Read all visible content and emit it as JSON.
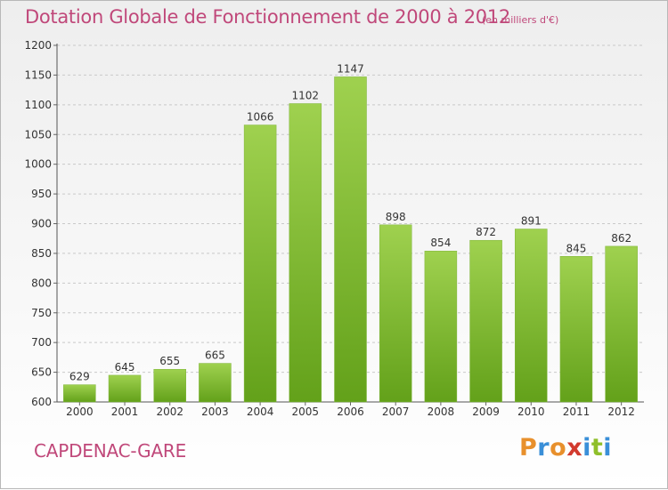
{
  "header": {
    "title": "Dotation Globale de Fonctionnement de 2000 à 2012",
    "unit": "(en milliers d'€)"
  },
  "footer": {
    "town": "CAPDENAC-GARE",
    "logo": "Proxiti"
  },
  "colors": {
    "accent": "#c0487a",
    "bar_light": "#9fd14f",
    "bar_dark": "#63a11a",
    "logo_letters": [
      "#e8902c",
      "#3a8fd8",
      "#e8902c",
      "#d23a2e",
      "#3a8fd8",
      "#8fbf2a",
      "#3a8fd8"
    ]
  },
  "chart_data": {
    "type": "bar",
    "title": "Dotation Globale de Fonctionnement de 2000 à 2012",
    "xlabel": "",
    "ylabel": "",
    "categories": [
      "2000",
      "2001",
      "2002",
      "2003",
      "2004",
      "2005",
      "2006",
      "2007",
      "2008",
      "2009",
      "2010",
      "2011",
      "2012"
    ],
    "values": [
      629,
      645,
      655,
      665,
      1066,
      1102,
      1147,
      898,
      854,
      872,
      891,
      845,
      862
    ],
    "data_labels": [
      "629",
      "645",
      "655",
      "665",
      "1066",
      "1102",
      "1147",
      "898",
      "854",
      "872",
      "891",
      "845",
      "862"
    ],
    "ylim": [
      600,
      1200
    ],
    "yticks": [
      600,
      650,
      700,
      750,
      800,
      850,
      900,
      950,
      1000,
      1050,
      1100,
      1150,
      1200
    ],
    "ytick_labels": [
      "600",
      "650",
      "700",
      "750",
      "800",
      "850",
      "900",
      "950",
      "1000",
      "1050",
      "1100",
      "1150",
      "1200"
    ],
    "grid": "horizontal dashed",
    "legend": "none"
  }
}
